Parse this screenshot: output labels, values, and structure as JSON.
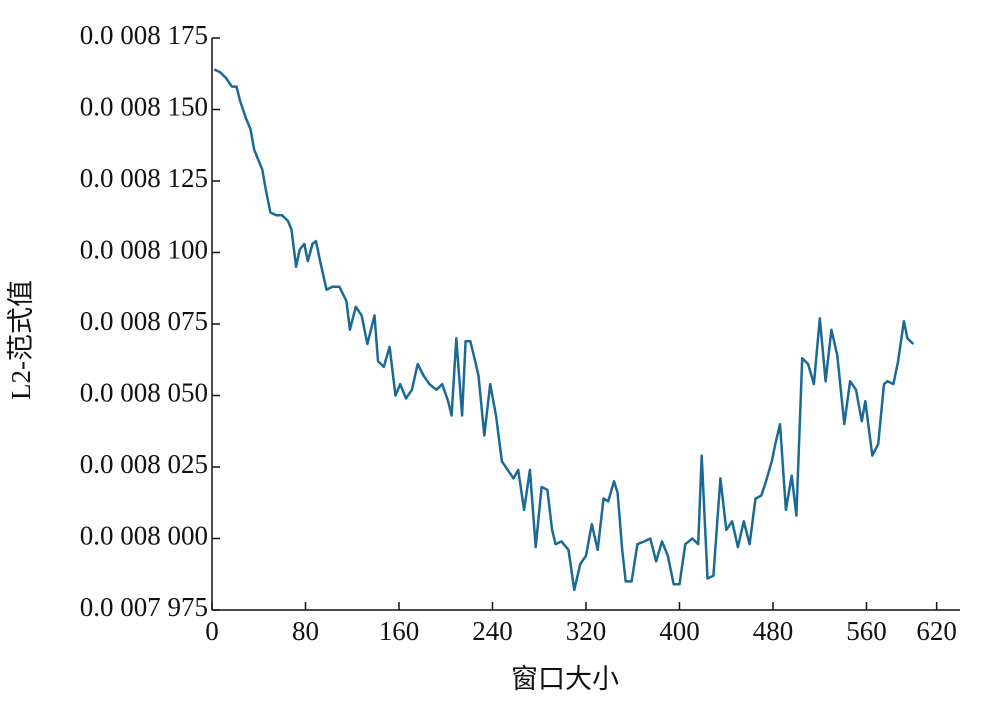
{
  "chart_data": {
    "type": "line",
    "xlabel": "窗口大小",
    "ylabel": "L2-范式值",
    "xlim": [
      0,
      640
    ],
    "xticks": [
      0,
      80,
      160,
      240,
      320,
      400,
      480,
      560,
      620
    ],
    "ylim": [
      0.0007975,
      0.0008175
    ],
    "yticks": [
      {
        "value": 0.0007975,
        "label": "0.0 007 975"
      },
      {
        "value": 0.0008,
        "label": "0.0 008 000"
      },
      {
        "value": 0.0008025,
        "label": "0.0 008 025"
      },
      {
        "value": 0.000805,
        "label": "0.0 008 050"
      },
      {
        "value": 0.0008075,
        "label": "0.0 008 075"
      },
      {
        "value": 0.00081,
        "label": "0.0 008 100"
      },
      {
        "value": 0.0008125,
        "label": "0.0 008 125"
      },
      {
        "value": 0.000815,
        "label": "0.0 008 150"
      },
      {
        "value": 0.0008175,
        "label": "0.0 008 175"
      }
    ],
    "color": "#1b6a96",
    "x": [
      2,
      7,
      12,
      17,
      21,
      24,
      29,
      33,
      36,
      39,
      43,
      46,
      50,
      55,
      60,
      65,
      68,
      72,
      75,
      79,
      82,
      86,
      89,
      92,
      98,
      103,
      109,
      115,
      118,
      123,
      128,
      133,
      139,
      142,
      147,
      152,
      157,
      161,
      166,
      171,
      176,
      181,
      186,
      192,
      197,
      202,
      205,
      209,
      214,
      217,
      221,
      224,
      228,
      233,
      238,
      243,
      248,
      253,
      258,
      262,
      267,
      272,
      277,
      282,
      287,
      291,
      294,
      299,
      305,
      310,
      315,
      320,
      325,
      330,
      335,
      339,
      344,
      347,
      351,
      354,
      359,
      364,
      370,
      375,
      380,
      385,
      390,
      395,
      400,
      405,
      411,
      416,
      419,
      424,
      429,
      435,
      440,
      445,
      450,
      455,
      460,
      465,
      470,
      474,
      479,
      482,
      486,
      491,
      496,
      500,
      505,
      510,
      515,
      520,
      525,
      530,
      535,
      541,
      546,
      551,
      556,
      559,
      565,
      570,
      575,
      578,
      583,
      587,
      592,
      595,
      600
    ],
    "values": [
      0.0008164,
      0.0008163,
      0.0008161,
      0.0008158,
      0.0008158,
      0.0008153,
      0.0008147,
      0.0008143,
      0.0008136,
      0.0008133,
      0.0008129,
      0.0008122,
      0.0008114,
      0.0008113,
      0.0008113,
      0.0008111,
      0.0008108,
      0.0008095,
      0.0008101,
      0.0008103,
      0.0008097,
      0.0008103,
      0.0008104,
      0.0008098,
      0.0008087,
      0.0008088,
      0.0008088,
      0.0008083,
      0.0008073,
      0.0008081,
      0.0008078,
      0.0008068,
      0.0008078,
      0.0008062,
      0.000806,
      0.0008067,
      0.000805,
      0.0008054,
      0.0008049,
      0.0008052,
      0.0008061,
      0.0008057,
      0.0008054,
      0.0008052,
      0.0008054,
      0.0008048,
      0.0008043,
      0.000807,
      0.0008043,
      0.0008069,
      0.0008069,
      0.0008064,
      0.0008057,
      0.0008036,
      0.0008054,
      0.0008043,
      0.0008027,
      0.0008024,
      0.0008021,
      0.0008024,
      0.000801,
      0.0008024,
      0.0007997,
      0.0008018,
      0.0008017,
      0.0008003,
      0.0007998,
      0.0007999,
      0.0007996,
      0.0007982,
      0.0007991,
      0.0007994,
      0.0008005,
      0.0007996,
      0.0008014,
      0.0008013,
      0.000802,
      0.0008016,
      0.0007996,
      0.0007985,
      0.0007985,
      0.0007998,
      0.0007999,
      0.0008,
      0.0007992,
      0.0007999,
      0.0007994,
      0.0007984,
      0.0007984,
      0.0007998,
      0.0008,
      0.0007998,
      0.0008029,
      0.0007986,
      0.0007987,
      0.0008021,
      0.0008003,
      0.0008006,
      0.0007997,
      0.0008006,
      0.0007998,
      0.0008014,
      0.0008015,
      0.000802,
      0.0008027,
      0.0008033,
      0.000804,
      0.000801,
      0.0008022,
      0.0008008,
      0.0008063,
      0.0008061,
      0.0008054,
      0.0008077,
      0.0008055,
      0.0008073,
      0.0008064,
      0.000804,
      0.0008055,
      0.0008052,
      0.0008041,
      0.0008048,
      0.0008029,
      0.0008033,
      0.0008054,
      0.0008055,
      0.0008054,
      0.0008062,
      0.0008076,
      0.000807,
      0.0008068
    ]
  }
}
